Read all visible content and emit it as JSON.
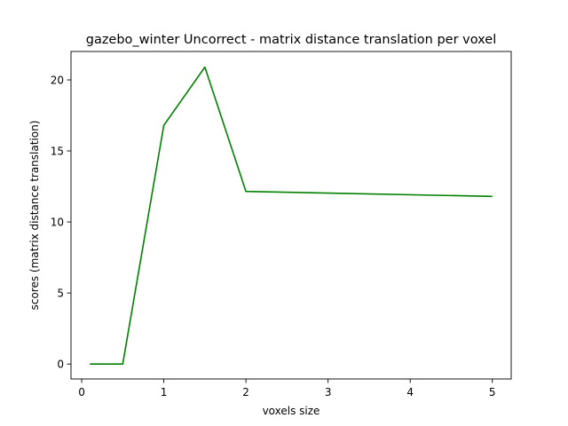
{
  "chart_data": {
    "type": "line",
    "title": "gazebo_winter Uncorrect - matrix distance translation per voxel",
    "xlabel": "voxels size",
    "ylabel": "scores (matrix distance translation)",
    "xlim": [
      -0.13,
      5.23
    ],
    "ylim": [
      -1.05,
      22.0
    ],
    "xticks": [
      0,
      1,
      2,
      3,
      4,
      5
    ],
    "xtick_labels": [
      "0",
      "1",
      "2",
      "3",
      "4",
      "5"
    ],
    "yticks": [
      0,
      5,
      10,
      15,
      20
    ],
    "ytick_labels": [
      "0",
      "5",
      "10",
      "15",
      "20"
    ],
    "grid": false,
    "series": [
      {
        "color": "#008000",
        "x": [
          0.1,
          0.5,
          1.0,
          1.5,
          2.0,
          5.0
        ],
        "y": [
          0.0,
          0.0,
          16.8,
          20.9,
          12.15,
          11.8
        ]
      }
    ]
  }
}
